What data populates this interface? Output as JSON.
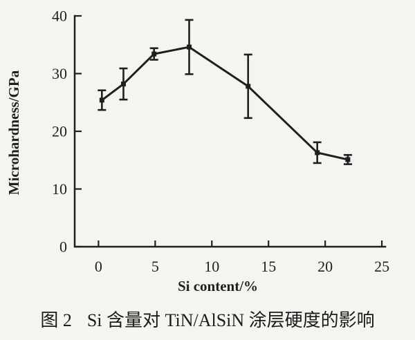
{
  "figure": {
    "caption_label": "图 2",
    "caption_text": "Si 含量对 TiN/AlSiN 涂层硬度的影响"
  },
  "colors": {
    "ink": "#1f1f1f",
    "background": "#f5f4f1"
  },
  "chart_data": {
    "type": "line",
    "title": "",
    "xlabel": "Si content/%",
    "ylabel": "Microhardness/GPa",
    "xlim": [
      -2.1,
      25.3
    ],
    "ylim": [
      0,
      40
    ],
    "xticks": [
      0,
      5,
      10,
      15,
      20,
      25
    ],
    "yticks": [
      0,
      10,
      20,
      30,
      40
    ],
    "grid": false,
    "legend": "none",
    "error_bars": true,
    "points": [
      {
        "x": 0.3,
        "y": 25.4,
        "err": 1.7
      },
      {
        "x": 2.2,
        "y": 28.2,
        "err": 2.7
      },
      {
        "x": 4.9,
        "y": 33.4,
        "err": 1.0
      },
      {
        "x": 8.0,
        "y": 34.6,
        "err": 4.7
      },
      {
        "x": 13.2,
        "y": 27.8,
        "err": 5.5
      },
      {
        "x": 19.3,
        "y": 16.3,
        "err": 1.8
      },
      {
        "x": 22.0,
        "y": 15.1,
        "err": 0.8
      }
    ]
  }
}
